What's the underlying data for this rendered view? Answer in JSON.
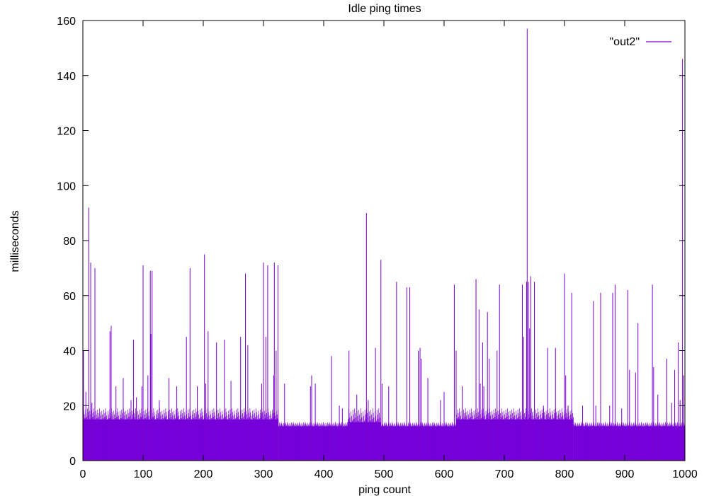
{
  "chart_data": {
    "type": "bar",
    "title": "Idle ping times",
    "xlabel": "ping count",
    "ylabel": "milliseconds",
    "xlim": [
      0,
      1000
    ],
    "ylim": [
      0,
      160
    ],
    "xticks": [
      0,
      100,
      200,
      300,
      400,
      500,
      600,
      700,
      800,
      900,
      1000
    ],
    "yticks": [
      0,
      20,
      40,
      60,
      80,
      100,
      120,
      140,
      160
    ],
    "legend_position": "top-right",
    "grid": false,
    "series": [
      {
        "name": "\"out2\"",
        "color": "#7b00d4",
        "fill_color": "#5f00f0",
        "baseline_segments": [
          {
            "x_start": 0,
            "x_end": 325,
            "y_min": 15,
            "y_max": 19
          },
          {
            "x_start": 325,
            "x_end": 440,
            "y_min": 12.5,
            "y_max": 14
          },
          {
            "x_start": 440,
            "x_end": 495,
            "y_min": 14,
            "y_max": 19
          },
          {
            "x_start": 495,
            "x_end": 620,
            "y_min": 12.5,
            "y_max": 14
          },
          {
            "x_start": 620,
            "x_end": 815,
            "y_min": 15,
            "y_max": 19
          },
          {
            "x_start": 815,
            "x_end": 1000,
            "y_min": 12.5,
            "y_max": 14
          }
        ],
        "spikes": [
          {
            "x": 1,
            "y": 40
          },
          {
            "x": 5,
            "y": 25
          },
          {
            "x": 10,
            "y": 92
          },
          {
            "x": 13,
            "y": 72
          },
          {
            "x": 15,
            "y": 21
          },
          {
            "x": 20,
            "y": 70
          },
          {
            "x": 45,
            "y": 47
          },
          {
            "x": 47,
            "y": 49
          },
          {
            "x": 55,
            "y": 27
          },
          {
            "x": 67,
            "y": 30
          },
          {
            "x": 80,
            "y": 22
          },
          {
            "x": 84,
            "y": 44
          },
          {
            "x": 89,
            "y": 23
          },
          {
            "x": 98,
            "y": 27
          },
          {
            "x": 100,
            "y": 71
          },
          {
            "x": 108,
            "y": 31
          },
          {
            "x": 112,
            "y": 69
          },
          {
            "x": 113,
            "y": 46
          },
          {
            "x": 115,
            "y": 69
          },
          {
            "x": 127,
            "y": 22
          },
          {
            "x": 143,
            "y": 30
          },
          {
            "x": 156,
            "y": 27
          },
          {
            "x": 172,
            "y": 45
          },
          {
            "x": 178,
            "y": 70
          },
          {
            "x": 190,
            "y": 27
          },
          {
            "x": 202,
            "y": 75
          },
          {
            "x": 204,
            "y": 28
          },
          {
            "x": 208,
            "y": 47
          },
          {
            "x": 222,
            "y": 43
          },
          {
            "x": 235,
            "y": 44
          },
          {
            "x": 246,
            "y": 29
          },
          {
            "x": 262,
            "y": 45
          },
          {
            "x": 270,
            "y": 68
          },
          {
            "x": 274,
            "y": 42
          },
          {
            "x": 297,
            "y": 28
          },
          {
            "x": 300,
            "y": 72
          },
          {
            "x": 304,
            "y": 45
          },
          {
            "x": 307,
            "y": 71
          },
          {
            "x": 317,
            "y": 31
          },
          {
            "x": 318,
            "y": 72
          },
          {
            "x": 321,
            "y": 40
          },
          {
            "x": 324,
            "y": 71
          },
          {
            "x": 335,
            "y": 28
          },
          {
            "x": 378,
            "y": 27
          },
          {
            "x": 380,
            "y": 31
          },
          {
            "x": 386,
            "y": 28
          },
          {
            "x": 413,
            "y": 38
          },
          {
            "x": 426,
            "y": 20
          },
          {
            "x": 431,
            "y": 19
          },
          {
            "x": 442,
            "y": 40
          },
          {
            "x": 455,
            "y": 24
          },
          {
            "x": 471,
            "y": 90
          },
          {
            "x": 474,
            "y": 22
          },
          {
            "x": 486,
            "y": 41
          },
          {
            "x": 495,
            "y": 73
          },
          {
            "x": 497,
            "y": 28
          },
          {
            "x": 508,
            "y": 27
          },
          {
            "x": 521,
            "y": 65
          },
          {
            "x": 538,
            "y": 63
          },
          {
            "x": 543,
            "y": 63
          },
          {
            "x": 557,
            "y": 40
          },
          {
            "x": 560,
            "y": 41
          },
          {
            "x": 562,
            "y": 37
          },
          {
            "x": 573,
            "y": 30
          },
          {
            "x": 594,
            "y": 22
          },
          {
            "x": 600,
            "y": 25
          },
          {
            "x": 617,
            "y": 64
          },
          {
            "x": 620,
            "y": 40
          },
          {
            "x": 630,
            "y": 27
          },
          {
            "x": 653,
            "y": 66
          },
          {
            "x": 658,
            "y": 55
          },
          {
            "x": 660,
            "y": 28
          },
          {
            "x": 664,
            "y": 43
          },
          {
            "x": 666,
            "y": 27
          },
          {
            "x": 672,
            "y": 54
          },
          {
            "x": 675,
            "y": 37
          },
          {
            "x": 688,
            "y": 40
          },
          {
            "x": 692,
            "y": 64
          },
          {
            "x": 730,
            "y": 64
          },
          {
            "x": 732,
            "y": 45
          },
          {
            "x": 737,
            "y": 65
          },
          {
            "x": 738,
            "y": 157
          },
          {
            "x": 740,
            "y": 65
          },
          {
            "x": 742,
            "y": 48
          },
          {
            "x": 744,
            "y": 67
          },
          {
            "x": 750,
            "y": 65
          },
          {
            "x": 765,
            "y": 20
          },
          {
            "x": 772,
            "y": 41
          },
          {
            "x": 785,
            "y": 41
          },
          {
            "x": 800,
            "y": 68
          },
          {
            "x": 802,
            "y": 31
          },
          {
            "x": 806,
            "y": 20
          },
          {
            "x": 812,
            "y": 61
          },
          {
            "x": 830,
            "y": 20
          },
          {
            "x": 848,
            "y": 58
          },
          {
            "x": 852,
            "y": 20
          },
          {
            "x": 860,
            "y": 61
          },
          {
            "x": 875,
            "y": 20
          },
          {
            "x": 880,
            "y": 61
          },
          {
            "x": 884,
            "y": 64
          },
          {
            "x": 895,
            "y": 19
          },
          {
            "x": 905,
            "y": 62
          },
          {
            "x": 908,
            "y": 33
          },
          {
            "x": 918,
            "y": 32
          },
          {
            "x": 922,
            "y": 50
          },
          {
            "x": 946,
            "y": 64
          },
          {
            "x": 948,
            "y": 34
          },
          {
            "x": 955,
            "y": 24
          },
          {
            "x": 970,
            "y": 37
          },
          {
            "x": 978,
            "y": 21
          },
          {
            "x": 983,
            "y": 33
          },
          {
            "x": 989,
            "y": 43
          },
          {
            "x": 992,
            "y": 22
          },
          {
            "x": 996,
            "y": 146
          },
          {
            "x": 998,
            "y": 31
          }
        ]
      }
    ]
  }
}
